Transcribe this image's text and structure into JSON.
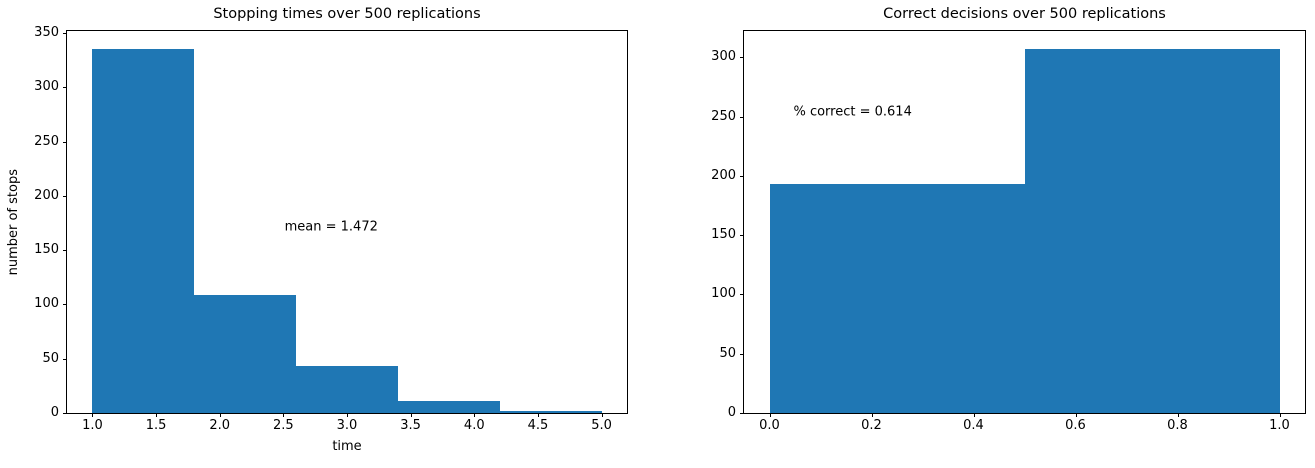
{
  "figure": {
    "background": "#ffffff"
  },
  "chart_data": [
    {
      "type": "bar",
      "subtype": "histogram",
      "title": "Stopping times over 500 replications",
      "xlabel": "time",
      "ylabel": "number of stops",
      "bin_edges": [
        1.0,
        1.8,
        2.6,
        3.4,
        4.2,
        5.0
      ],
      "counts": [
        335,
        109,
        43,
        11,
        2
      ],
      "xlim": [
        0.8,
        5.2
      ],
      "ylim": [
        0,
        351.75
      ],
      "xticks": [
        1.0,
        1.5,
        2.0,
        2.5,
        3.0,
        3.5,
        4.0,
        4.5,
        5.0
      ],
      "xtick_labels": [
        "1.0",
        "1.5",
        "2.0",
        "2.5",
        "3.0",
        "3.5",
        "4.0",
        "4.5",
        "5.0"
      ],
      "yticks": [
        0,
        50,
        100,
        150,
        200,
        250,
        300,
        350
      ],
      "ytick_labels": [
        "0",
        "50",
        "100",
        "150",
        "200",
        "250",
        "300",
        "350"
      ],
      "annotation": {
        "text": "mean = 1.472",
        "x": 2.51,
        "y": 171
      },
      "bar_color": "#1f77b4",
      "grid": false,
      "legend": null
    },
    {
      "type": "bar",
      "subtype": "histogram",
      "title": "Correct decisions over 500 replications",
      "xlabel": "",
      "ylabel": "",
      "bin_edges": [
        0.0,
        0.5,
        1.0
      ],
      "counts": [
        193,
        307
      ],
      "xlim": [
        -0.05,
        1.05
      ],
      "ylim": [
        0,
        322.35
      ],
      "xticks": [
        0.0,
        0.2,
        0.4,
        0.6,
        0.8,
        1.0
      ],
      "xtick_labels": [
        "0.0",
        "0.2",
        "0.4",
        "0.6",
        "0.8",
        "1.0"
      ],
      "yticks": [
        0,
        50,
        100,
        150,
        200,
        250,
        300
      ],
      "ytick_labels": [
        "0",
        "50",
        "100",
        "150",
        "200",
        "250",
        "300"
      ],
      "annotation": {
        "text": "% correct = 0.614",
        "x": 0.047,
        "y": 254
      },
      "bar_color": "#1f77b4",
      "grid": false,
      "legend": null
    }
  ]
}
